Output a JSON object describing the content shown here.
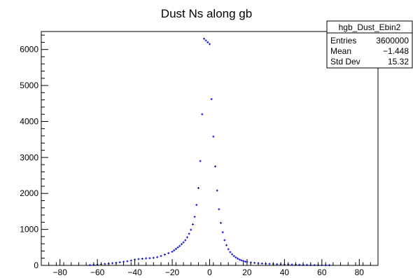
{
  "chart_data": {
    "type": "scatter",
    "title": "Dust Ns along gb",
    "xlabel": "",
    "ylabel": "",
    "xlim": [
      -90,
      90
    ],
    "ylim": [
      0,
      6500
    ],
    "x_ticks": [
      -80,
      -60,
      -40,
      -20,
      0,
      20,
      40,
      60,
      80
    ],
    "y_ticks": [
      0,
      1000,
      2000,
      3000,
      4000,
      5000,
      6000
    ],
    "grid": false,
    "marker_color": "#0000cc",
    "stats_box": {
      "placement": "top-right",
      "name": "hgb_Dust_Ebin2",
      "rows": [
        {
          "label": "Entries",
          "value": "3600000"
        },
        {
          "label": "Mean",
          "value": "−1.448"
        },
        {
          "label": "Std Dev",
          "value": "15.32"
        }
      ]
    },
    "x": [
      -64,
      -62,
      -60,
      -58,
      -56,
      -54,
      -52,
      -50,
      -48,
      -46,
      -44,
      -42,
      -40,
      -38,
      -36,
      -34,
      -32,
      -30,
      -28,
      -26,
      -24,
      -22,
      -20,
      -19,
      -18,
      -17,
      -16,
      -15,
      -14,
      -13,
      -12,
      -11,
      -10,
      -9,
      -8,
      -7,
      -6,
      -5,
      -4,
      -3,
      -2,
      -1,
      0,
      1,
      2,
      3,
      4,
      5,
      6,
      7,
      8,
      9,
      10,
      11,
      12,
      13,
      14,
      15,
      16,
      17,
      18,
      19,
      20,
      22,
      24,
      26,
      28,
      30,
      32,
      34,
      36,
      38,
      40,
      42,
      44,
      46,
      48,
      50,
      52,
      54,
      56,
      58,
      60,
      62,
      64
    ],
    "y": [
      10,
      15,
      22,
      30,
      40,
      50,
      60,
      70,
      85,
      100,
      115,
      135,
      160,
      175,
      185,
      195,
      200,
      210,
      230,
      260,
      300,
      340,
      380,
      420,
      460,
      500,
      540,
      590,
      640,
      700,
      780,
      880,
      990,
      1140,
      1350,
      1680,
      2150,
      2900,
      4200,
      6300,
      6250,
      6200,
      6150,
      4620,
      3580,
      2750,
      2080,
      1560,
      1180,
      920,
      700,
      560,
      450,
      370,
      310,
      260,
      220,
      190,
      160,
      140,
      120,
      105,
      95,
      80,
      70,
      60,
      52,
      46,
      42,
      38,
      34,
      30,
      27,
      24,
      21,
      19,
      17,
      15,
      13,
      11,
      10,
      9,
      8,
      7,
      6
    ]
  }
}
